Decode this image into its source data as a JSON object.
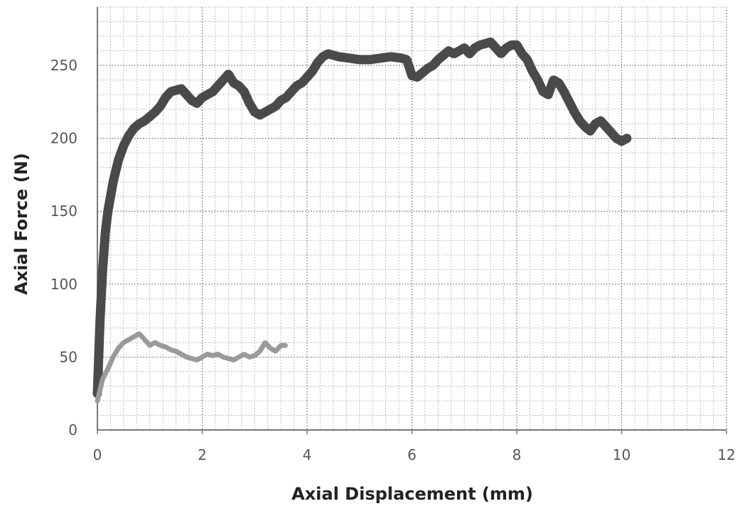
{
  "chart_data": {
    "type": "line",
    "title": "",
    "xlabel": "Axial Displacement  (mm)",
    "ylabel": "Axial Force (N)",
    "xlim": [
      0,
      12
    ],
    "ylim": [
      0,
      250
    ],
    "xticks": [
      "0",
      "2",
      "4",
      "6",
      "8",
      "10",
      "12"
    ],
    "yticks": [
      "0",
      "50",
      "100",
      "150",
      "200",
      "250"
    ],
    "grid": "on",
    "legend": "none",
    "series": [
      {
        "color": "#4a4a4a",
        "x": [
          0,
          0.05,
          0.1,
          0.15,
          0.2,
          0.3,
          0.4,
          0.5,
          0.6,
          0.7,
          0.8,
          0.9,
          1.0,
          1.1,
          1.2,
          1.3,
          1.4,
          1.5,
          1.6,
          1.7,
          1.8,
          1.9,
          2.0,
          2.1,
          2.2,
          2.3,
          2.4,
          2.5,
          2.6,
          2.7,
          2.8,
          2.9,
          3.0,
          3.1,
          3.2,
          3.3,
          3.4,
          3.5,
          3.6,
          3.7,
          3.8,
          3.9,
          4.0,
          4.1,
          4.2,
          4.3,
          4.4,
          4.5,
          4.6,
          4.8,
          5.0,
          5.2,
          5.4,
          5.6,
          5.8,
          5.9,
          6.0,
          6.1,
          6.2,
          6.3,
          6.4,
          6.5,
          6.6,
          6.7,
          6.8,
          6.9,
          7.0,
          7.1,
          7.2,
          7.3,
          7.4,
          7.5,
          7.6,
          7.7,
          7.8,
          7.9,
          8.0,
          8.1,
          8.2,
          8.3,
          8.4,
          8.5,
          8.6,
          8.7,
          8.8,
          8.9,
          9.0,
          9.1,
          9.2,
          9.3,
          9.4,
          9.5,
          9.6,
          9.7,
          9.8,
          9.9,
          10.0,
          10.1
        ],
        "y": [
          25,
          75,
          110,
          135,
          150,
          170,
          185,
          195,
          202,
          207,
          210,
          212,
          215,
          218,
          222,
          228,
          232,
          233,
          234,
          230,
          226,
          224,
          228,
          230,
          232,
          236,
          240,
          244,
          238,
          236,
          232,
          224,
          218,
          216,
          218,
          220,
          222,
          226,
          228,
          232,
          236,
          238,
          242,
          246,
          252,
          256,
          258,
          257,
          256,
          255,
          254,
          254,
          255,
          256,
          255,
          254,
          243,
          242,
          245,
          248,
          250,
          254,
          257,
          260,
          258,
          260,
          262,
          258,
          262,
          264,
          265,
          266,
          262,
          258,
          262,
          264,
          264,
          258,
          254,
          246,
          240,
          232,
          230,
          240,
          238,
          232,
          225,
          218,
          212,
          208,
          205,
          210,
          212,
          208,
          204,
          200,
          198,
          200
        ]
      },
      {
        "color": "#9a9a9a",
        "x": [
          0,
          0.1,
          0.2,
          0.3,
          0.4,
          0.5,
          0.6,
          0.7,
          0.8,
          0.9,
          1.0,
          1.1,
          1.2,
          1.3,
          1.4,
          1.5,
          1.6,
          1.7,
          1.8,
          1.9,
          2.0,
          2.1,
          2.2,
          2.3,
          2.4,
          2.5,
          2.6,
          2.7,
          2.8,
          2.9,
          3.0,
          3.1,
          3.2,
          3.3,
          3.4,
          3.5,
          3.6
        ],
        "y": [
          20,
          35,
          42,
          50,
          56,
          60,
          62,
          64,
          66,
          62,
          58,
          60,
          58,
          57,
          55,
          54,
          52,
          50,
          49,
          48,
          50,
          52,
          51,
          52,
          50,
          49,
          48,
          50,
          52,
          50,
          51,
          54,
          60,
          56,
          54,
          58,
          58
        ]
      }
    ]
  }
}
